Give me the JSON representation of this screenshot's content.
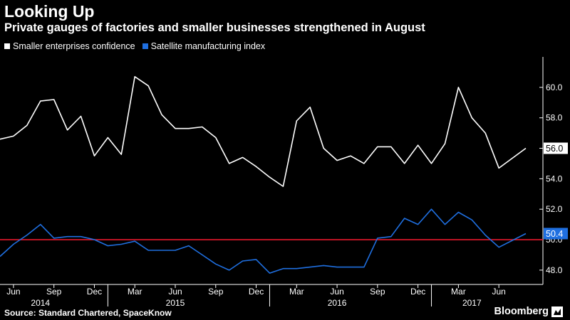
{
  "colors": {
    "background": "#000000",
    "smaller_line": "#ffffff",
    "satellite_line": "#1f6fe0",
    "reference_line": "#e8192c",
    "axis_text": "#ffffff"
  },
  "source": "Source: Standard Chartered, SpaceKnow",
  "brand": "Bloomberg",
  "chart_data": {
    "type": "line",
    "title": "Looking Up",
    "subtitle": "Private gauges of factories and smaller businesses strengthened in August",
    "legend_position": "top-left",
    "grid": false,
    "ylim": [
      47.2,
      62.0
    ],
    "yticks": [
      48.0,
      50.0,
      52.0,
      54.0,
      56.0,
      58.0,
      60.0
    ],
    "ytick_labels": [
      "48.0",
      "50.0",
      "52.0",
      "54.0",
      "56.0",
      "58.0",
      "60.0"
    ],
    "x": [
      "2014-05",
      "2014-06",
      "2014-07",
      "2014-08",
      "2014-09",
      "2014-10",
      "2014-11",
      "2014-12",
      "2015-01",
      "2015-02",
      "2015-03",
      "2015-04",
      "2015-05",
      "2015-06",
      "2015-07",
      "2015-08",
      "2015-09",
      "2015-10",
      "2015-11",
      "2015-12",
      "2016-01",
      "2016-02",
      "2016-03",
      "2016-04",
      "2016-05",
      "2016-06",
      "2016-07",
      "2016-08",
      "2016-09",
      "2016-10",
      "2016-11",
      "2016-12",
      "2017-01",
      "2017-02",
      "2017-03",
      "2017-04",
      "2017-05",
      "2017-06",
      "2017-07",
      "2017-08"
    ],
    "xticks": [
      {
        "x": "2014-06",
        "label": "Jun"
      },
      {
        "x": "2014-09",
        "label": "Sep"
      },
      {
        "x": "2014-12",
        "label": "Dec"
      },
      {
        "x": "2015-03",
        "label": "Mar"
      },
      {
        "x": "2015-06",
        "label": "Jun"
      },
      {
        "x": "2015-09",
        "label": "Sep"
      },
      {
        "x": "2015-12",
        "label": "Dec"
      },
      {
        "x": "2016-03",
        "label": "Mar"
      },
      {
        "x": "2016-06",
        "label": "Jun"
      },
      {
        "x": "2016-09",
        "label": "Sep"
      },
      {
        "x": "2016-12",
        "label": "Dec"
      },
      {
        "x": "2017-03",
        "label": "Mar"
      },
      {
        "x": "2017-06",
        "label": "Jun"
      }
    ],
    "year_labels": [
      {
        "x": "2014-08",
        "label": "2014"
      },
      {
        "x": "2015-06",
        "label": "2015"
      },
      {
        "x": "2016-06",
        "label": "2016"
      },
      {
        "x": "2017-04",
        "label": "2017"
      }
    ],
    "reference_line": {
      "y": 50.0
    },
    "series": [
      {
        "name": "Smaller enterprises confidence",
        "color": "#ffffff",
        "values": [
          56.6,
          56.8,
          57.5,
          59.1,
          59.2,
          57.2,
          58.1,
          55.5,
          56.7,
          55.6,
          60.7,
          60.1,
          58.2,
          57.3,
          57.3,
          57.4,
          56.7,
          55.0,
          55.4,
          54.8,
          54.1,
          53.5,
          57.8,
          58.7,
          56.0,
          55.2,
          55.5,
          55.0,
          56.1,
          56.1,
          55.0,
          56.2,
          55.0,
          56.3,
          60.0,
          58.0,
          57.0,
          54.7,
          null,
          56.0
        ],
        "end_label": "56.0"
      },
      {
        "name": "Satellite manufacturing index",
        "color": "#1f6fe0",
        "values": [
          48.9,
          49.7,
          50.3,
          51.0,
          50.1,
          50.2,
          50.2,
          50.0,
          49.6,
          49.7,
          49.9,
          49.3,
          49.3,
          49.3,
          49.6,
          49.0,
          48.4,
          48.0,
          48.6,
          48.7,
          47.8,
          48.1,
          48.1,
          48.2,
          48.3,
          48.2,
          48.2,
          48.2,
          50.1,
          50.2,
          51.4,
          51.0,
          52.0,
          51.0,
          51.8,
          51.3,
          50.3,
          49.5,
          null,
          50.4
        ],
        "end_label": "50.4"
      }
    ]
  }
}
